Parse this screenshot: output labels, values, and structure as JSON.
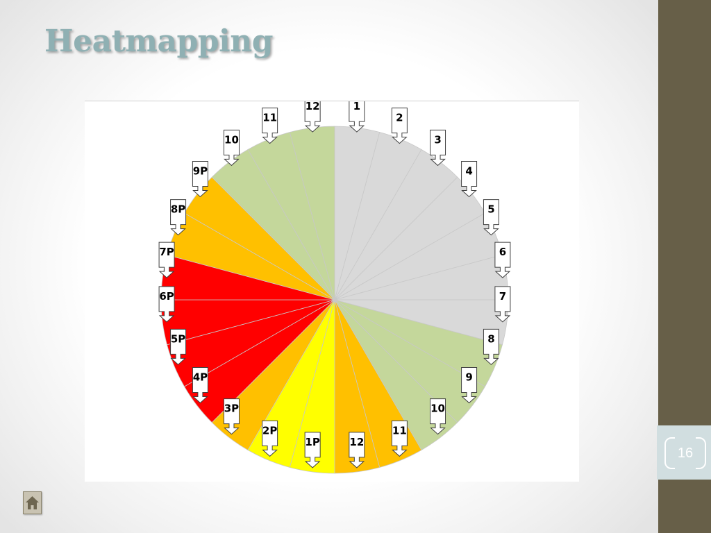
{
  "slide": {
    "title": "Heatmapping",
    "page_number": "16"
  },
  "colors": {
    "none": "#d9d9d9",
    "green": "#c4d79b",
    "yellow": "#ffff00",
    "orange": "#ffc000",
    "red": "#ff0000"
  },
  "chart_data": {
    "type": "pie",
    "title": "",
    "slices_clockwise_from_top": [
      {
        "label": "1",
        "level": "none"
      },
      {
        "label": "2",
        "level": "none"
      },
      {
        "label": "3",
        "level": "none"
      },
      {
        "label": "4",
        "level": "none"
      },
      {
        "label": "5",
        "level": "none"
      },
      {
        "label": "6",
        "level": "none"
      },
      {
        "label": "7",
        "level": "none"
      },
      {
        "label": "8",
        "level": "green"
      },
      {
        "label": "9",
        "level": "green"
      },
      {
        "label": "10",
        "level": "green"
      },
      {
        "label": "11",
        "level": "orange"
      },
      {
        "label": "12",
        "level": "orange"
      },
      {
        "label": "1P",
        "level": "yellow"
      },
      {
        "label": "2P",
        "level": "yellow"
      },
      {
        "label": "3P",
        "level": "orange"
      },
      {
        "label": "4P",
        "level": "red"
      },
      {
        "label": "5P",
        "level": "red"
      },
      {
        "label": "6P",
        "level": "red"
      },
      {
        "label": "7P",
        "level": "red"
      },
      {
        "label": "8P",
        "level": "orange"
      },
      {
        "label": "9P",
        "level": "orange"
      },
      {
        "label": "10",
        "level": "green"
      },
      {
        "label": "11",
        "level": "green"
      },
      {
        "label": "12",
        "level": "green"
      }
    ]
  }
}
